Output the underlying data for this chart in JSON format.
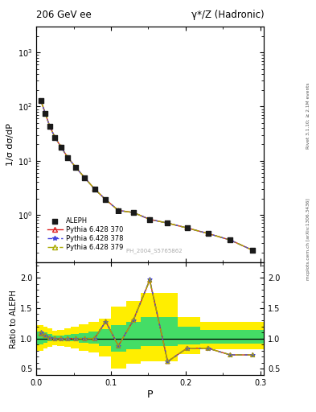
{
  "title_left": "206 GeV ee",
  "title_right": "γ*/Z (Hadronic)",
  "ylabel_main": "1/σ dσ/dP",
  "ylabel_ratio": "Ratio to ALEPH",
  "xlabel": "P",
  "right_label_top": "Rivet 3.1.10; ≥ 2.1M events",
  "right_label_bottom": "mcplots.cern.ch [arXiv:1306.3436]",
  "watermark": "ALEPH_2004_S5765862",
  "aleph_x": [
    0.006,
    0.012,
    0.018,
    0.025,
    0.033,
    0.042,
    0.053,
    0.065,
    0.078,
    0.093,
    0.11,
    0.13,
    0.152,
    0.176,
    0.202,
    0.23,
    0.26,
    0.29
  ],
  "aleph_y": [
    130.0,
    75.0,
    43.0,
    27.0,
    18.0,
    11.5,
    7.5,
    4.8,
    3.0,
    1.9,
    1.2,
    1.1,
    0.82,
    0.7,
    0.57,
    0.45,
    0.34,
    0.22
  ],
  "pythia370_y": [
    130.0,
    75.0,
    43.0,
    27.0,
    18.0,
    11.5,
    7.5,
    4.8,
    3.0,
    1.9,
    1.2,
    1.1,
    0.82,
    0.7,
    0.57,
    0.45,
    0.34,
    0.22
  ],
  "pythia378_y": [
    130.0,
    75.0,
    43.0,
    27.0,
    18.0,
    11.5,
    7.5,
    4.8,
    3.0,
    1.9,
    1.2,
    1.1,
    0.82,
    0.7,
    0.57,
    0.45,
    0.34,
    0.22
  ],
  "pythia379_y": [
    130.0,
    75.0,
    43.0,
    27.0,
    18.0,
    11.5,
    7.5,
    4.8,
    3.0,
    1.9,
    1.2,
    1.1,
    0.82,
    0.7,
    0.57,
    0.45,
    0.34,
    0.22
  ],
  "ratio_x": [
    0.006,
    0.012,
    0.018,
    0.025,
    0.033,
    0.042,
    0.053,
    0.065,
    0.078,
    0.093,
    0.11,
    0.13,
    0.152,
    0.176,
    0.202,
    0.23,
    0.26,
    0.29
  ],
  "ratio370_y": [
    1.08,
    1.05,
    1.01,
    1.0,
    1.0,
    1.0,
    1.0,
    1.0,
    1.0,
    1.28,
    0.88,
    1.3,
    1.96,
    0.62,
    0.84,
    0.84,
    0.73,
    0.73
  ],
  "ratio378_y": [
    1.1,
    1.05,
    1.01,
    1.0,
    1.0,
    1.0,
    1.0,
    1.0,
    1.0,
    1.28,
    0.88,
    1.3,
    1.97,
    0.62,
    0.84,
    0.84,
    0.73,
    0.73
  ],
  "ratio379_y": [
    1.09,
    1.05,
    1.01,
    1.0,
    1.0,
    1.0,
    1.0,
    1.0,
    1.0,
    1.28,
    0.88,
    1.3,
    1.96,
    0.62,
    0.84,
    0.84,
    0.73,
    0.73
  ],
  "band_x_edges": [
    0.0,
    0.009,
    0.015,
    0.021,
    0.028,
    0.037,
    0.046,
    0.057,
    0.07,
    0.084,
    0.1,
    0.12,
    0.14,
    0.165,
    0.19,
    0.22,
    0.26,
    0.305
  ],
  "band_green_low": [
    0.9,
    0.93,
    0.95,
    0.97,
    0.97,
    0.96,
    0.95,
    0.93,
    0.91,
    0.88,
    0.78,
    0.82,
    0.88,
    0.88,
    0.9,
    0.92,
    0.92
  ],
  "band_green_high": [
    1.12,
    1.1,
    1.08,
    1.05,
    1.05,
    1.06,
    1.07,
    1.09,
    1.12,
    1.15,
    1.22,
    1.28,
    1.35,
    1.35,
    1.2,
    1.14,
    1.14
  ],
  "band_yellow_low": [
    0.8,
    0.83,
    0.86,
    0.89,
    0.88,
    0.86,
    0.83,
    0.8,
    0.77,
    0.7,
    0.5,
    0.58,
    0.62,
    0.62,
    0.75,
    0.82,
    0.82
  ],
  "band_yellow_high": [
    1.22,
    1.2,
    1.17,
    1.13,
    1.14,
    1.17,
    1.2,
    1.23,
    1.27,
    1.33,
    1.52,
    1.62,
    1.75,
    1.75,
    1.35,
    1.28,
    1.28
  ],
  "color_aleph": "#1a1a1a",
  "color_370": "#dd2222",
  "color_378": "#4444dd",
  "color_379": "#aaaa00",
  "color_green": "#44dd66",
  "color_yellow": "#ffee00",
  "ylim_main": [
    0.13,
    3000
  ],
  "ylim_ratio": [
    0.4,
    2.25
  ],
  "xlim": [
    0.0,
    0.305
  ]
}
